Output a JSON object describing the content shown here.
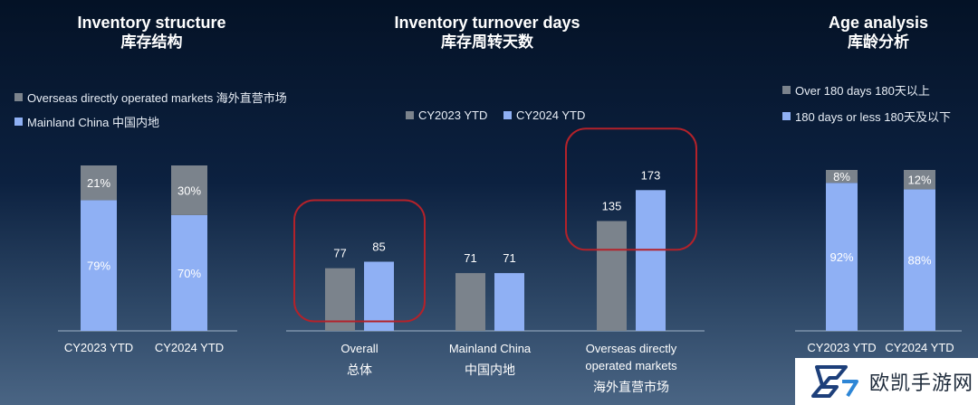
{
  "colors": {
    "gray": "#7b838c",
    "blue": "#8fb0f4",
    "circle": "#b3222a"
  },
  "panels": [
    {
      "title_en": "Inventory structure",
      "title_zh": "库存结构"
    },
    {
      "title_en": "Inventory turnover days",
      "title_zh": "库存周转天数"
    },
    {
      "title_en": "Age analysis",
      "title_zh": "库龄分析"
    }
  ],
  "legends": {
    "structure": [
      {
        "label": "Overseas directly operated markets 海外直营市场",
        "color": "gray"
      },
      {
        "label": "Mainland China 中国内地",
        "color": "blue"
      }
    ],
    "turnover": [
      {
        "label": "CY2023 YTD",
        "color": "gray"
      },
      {
        "label": "CY2024 YTD",
        "color": "blue"
      }
    ],
    "age": [
      {
        "label": "Over 180 days 180天以上",
        "color": "gray"
      },
      {
        "label": "180 days or less 180天及以下",
        "color": "blue"
      }
    ]
  },
  "watermark": {
    "text": "欧凯手游网",
    "icon": "brand-logo-icon"
  },
  "chart_data": [
    {
      "type": "bar",
      "stacked": true,
      "title": "Inventory structure 库存结构",
      "categories": [
        "CY2023 YTD",
        "CY2024 YTD"
      ],
      "series": [
        {
          "name": "Mainland China 中国内地",
          "values": [
            79,
            70
          ],
          "labels": [
            "79%",
            "70%"
          ],
          "color": "blue"
        },
        {
          "name": "Overseas directly operated markets 海外直营市场",
          "values": [
            21,
            30
          ],
          "labels": [
            "21%",
            "30%"
          ],
          "color": "gray"
        }
      ]
    },
    {
      "type": "bar",
      "title": "Inventory turnover days 库存周转天数",
      "categories": [
        "Overall",
        "Mainland China",
        "Overseas directly operated markets"
      ],
      "categories_zh": [
        "总体",
        "中国内地",
        "海外直营市场"
      ],
      "series": [
        {
          "name": "CY2023 YTD",
          "values": [
            77,
            71,
            135
          ],
          "color": "gray"
        },
        {
          "name": "CY2024 YTD",
          "values": [
            85,
            71,
            173
          ],
          "color": "blue"
        }
      ],
      "highlighted": [
        "Overall",
        "Overseas directly operated markets"
      ]
    },
    {
      "type": "bar",
      "stacked": true,
      "title": "Age analysis 库龄分析",
      "categories": [
        "CY2023 YTD",
        "CY2024 YTD"
      ],
      "series": [
        {
          "name": "180 days or less 180天及以下",
          "values": [
            92,
            88
          ],
          "labels": [
            "92%",
            "88%"
          ],
          "color": "blue"
        },
        {
          "name": "Over 180 days 180天以上",
          "values": [
            8,
            12
          ],
          "labels": [
            "8%",
            "12%"
          ],
          "color": "gray"
        }
      ]
    }
  ]
}
